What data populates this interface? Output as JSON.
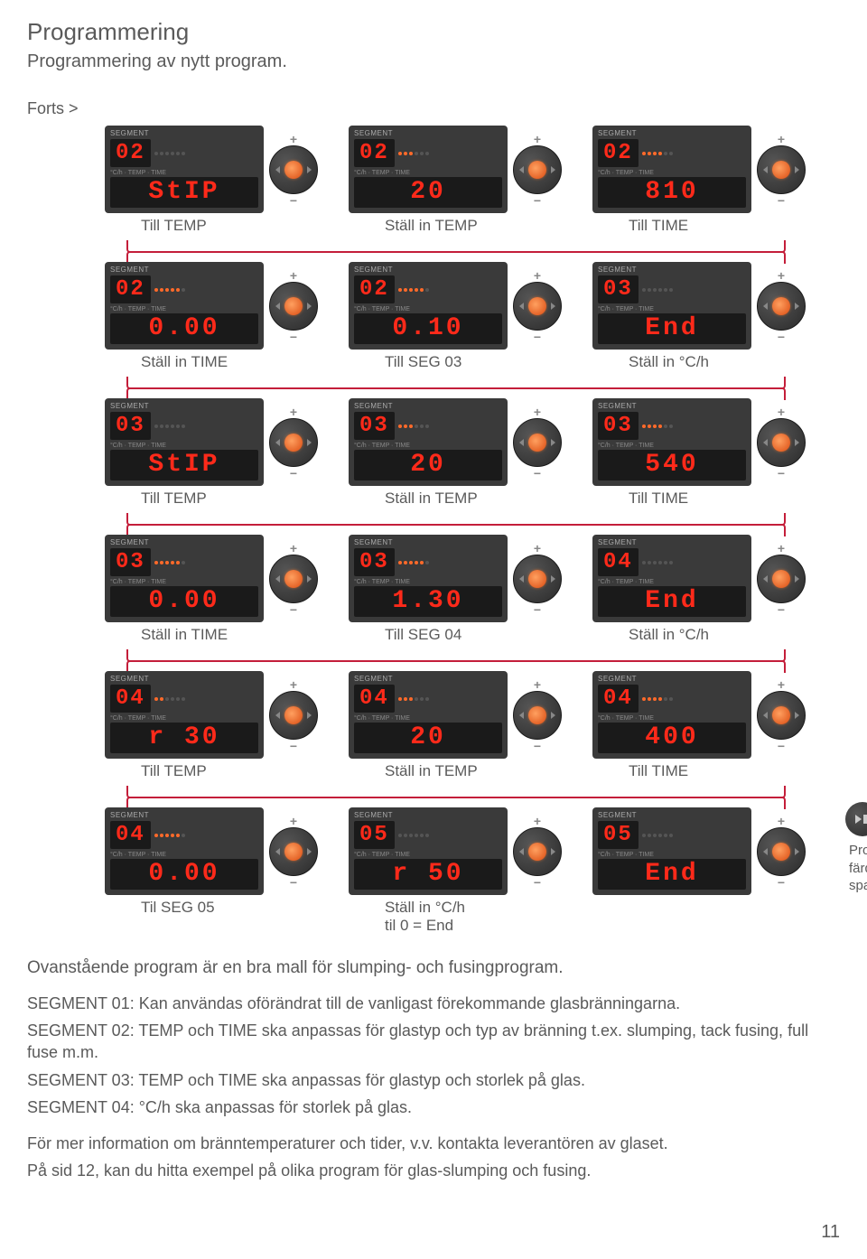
{
  "title": "Programmering",
  "subtitle": "Programmering av nytt program.",
  "forts": "Forts >",
  "pageNumber": "11",
  "rows": [
    {
      "units": [
        {
          "seg": "02",
          "dots": 0,
          "main": "StIP"
        },
        {
          "seg": "02",
          "dots": 3,
          "main": " 20"
        },
        {
          "seg": "02",
          "dots": 4,
          "main": "810"
        }
      ],
      "captions": [
        "Till TEMP",
        "Ställ in TEMP",
        "Till TIME"
      ]
    },
    {
      "units": [
        {
          "seg": "02",
          "dots": 5,
          "main": "0.00"
        },
        {
          "seg": "02",
          "dots": 5,
          "main": "0.10"
        },
        {
          "seg": "03",
          "dots": 0,
          "main": "End"
        }
      ],
      "captions": [
        "Ställ in TIME",
        "Till SEG 03",
        "Ställ in °C/h"
      ]
    },
    {
      "units": [
        {
          "seg": "03",
          "dots": 0,
          "main": "StIP"
        },
        {
          "seg": "03",
          "dots": 3,
          "main": " 20"
        },
        {
          "seg": "03",
          "dots": 4,
          "main": "540"
        }
      ],
      "captions": [
        "Till TEMP",
        "Ställ in TEMP",
        "Till TIME"
      ]
    },
    {
      "units": [
        {
          "seg": "03",
          "dots": 5,
          "main": "0.00"
        },
        {
          "seg": "03",
          "dots": 5,
          "main": "1.30"
        },
        {
          "seg": "04",
          "dots": 0,
          "main": "End"
        }
      ],
      "captions": [
        "Ställ in TIME",
        "Till SEG 04",
        "Ställ in °C/h"
      ]
    },
    {
      "units": [
        {
          "seg": "04",
          "dots": 2,
          "main": "r 30"
        },
        {
          "seg": "04",
          "dots": 3,
          "main": " 20"
        },
        {
          "seg": "04",
          "dots": 4,
          "main": "400"
        }
      ],
      "captions": [
        "Till TEMP",
        "Ställ in TEMP",
        "Till TIME"
      ]
    },
    {
      "units": [
        {
          "seg": "04",
          "dots": 5,
          "main": "0.00"
        },
        {
          "seg": "05",
          "dots": 0,
          "main": "r 50"
        },
        {
          "seg": "05",
          "dots": 0,
          "main": "End"
        }
      ],
      "captions": [
        "Til SEG 05",
        "Ställ in °C/h\ntil 0 = End",
        ""
      ],
      "hasPlay": true,
      "sideNote": "Programmet är nu färdigt och har sparats."
    }
  ],
  "labels": {
    "segment": "SEGMENT",
    "mid": "°C/h · TEMP · TIME"
  },
  "bodyText": {
    "lead": "Ovanstående program är en bra mall för slumping- och fusingprogram.",
    "lines": [
      "SEGMENT 01: Kan användas oförändrat till de vanligast förekommande glasbränningarna.",
      "SEGMENT 02: TEMP och TIME ska anpassas för glastyp och typ av bränning t.ex. slumping, tack fusing, full fuse m.m.",
      "SEGMENT 03: TEMP och TIME ska anpassas för glastyp och storlek på glas.",
      "SEGMENT 04: °C/h ska anpassas för storlek på glas."
    ],
    "foot1": "För mer information om bränntemperaturer och tider, v.v. kontakta leverantören av glaset.",
    "foot2": "På sid 12, kan du hitta exempel på olika program för glas-slumping och fusing."
  }
}
